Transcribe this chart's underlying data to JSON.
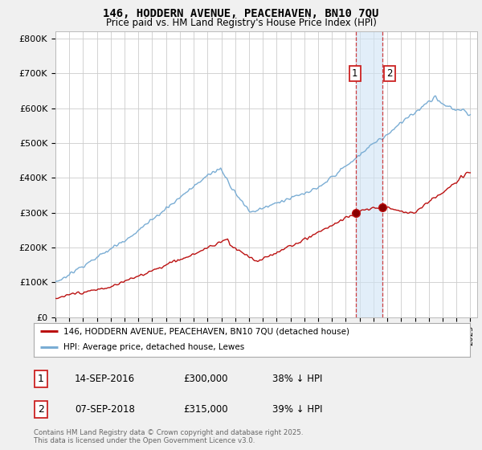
{
  "title_line1": "146, HODDERN AVENUE, PEACEHAVEN, BN10 7QU",
  "title_line2": "Price paid vs. HM Land Registry's House Price Index (HPI)",
  "hpi_color": "#7aadd4",
  "price_color": "#bb1111",
  "vline_color": "#cc2222",
  "shade_color": "#d0e4f5",
  "ylim": [
    0,
    820000
  ],
  "yticks": [
    0,
    100000,
    200000,
    300000,
    400000,
    500000,
    600000,
    700000,
    800000
  ],
  "ytick_labels": [
    "£0",
    "£100K",
    "£200K",
    "£300K",
    "£400K",
    "£500K",
    "£600K",
    "£700K",
    "£800K"
  ],
  "legend_price_label": "146, HODDERN AVENUE, PEACEHAVEN, BN10 7QU (detached house)",
  "legend_hpi_label": "HPI: Average price, detached house, Lewes",
  "sale1_date": "14-SEP-2016",
  "sale1_price": "£300,000",
  "sale1_hpi": "38% ↓ HPI",
  "sale2_date": "07-SEP-2018",
  "sale2_price": "£315,000",
  "sale2_hpi": "39% ↓ HPI",
  "sale1_year": 2016.71,
  "sale2_year": 2018.67,
  "sale1_val": 300000,
  "sale2_val": 315000,
  "footnote": "Contains HM Land Registry data © Crown copyright and database right 2025.\nThis data is licensed under the Open Government Licence v3.0.",
  "bg_color": "#f0f0f0",
  "plot_bg_color": "#ffffff",
  "grid_color": "#cccccc"
}
